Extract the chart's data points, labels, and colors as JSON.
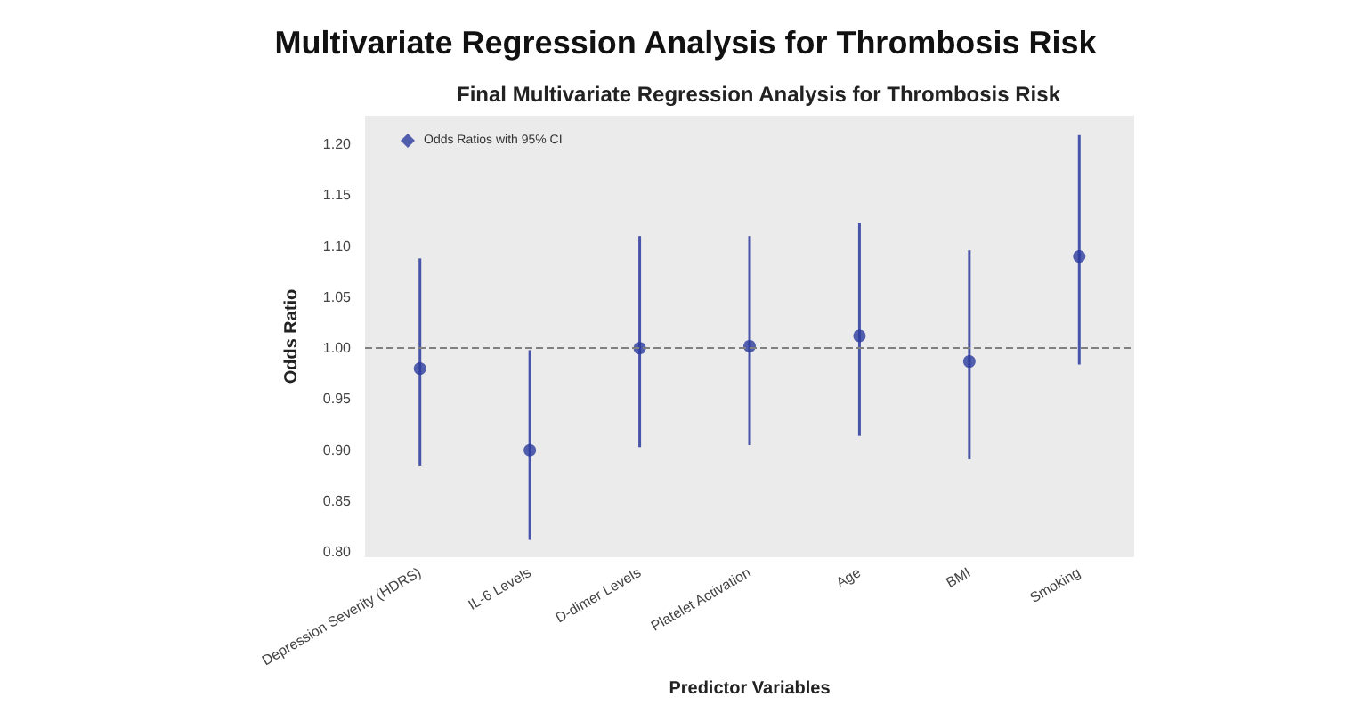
{
  "chart_data": {
    "type": "scatter",
    "title": "Multivariate Regression Analysis for Thrombosis Risk",
    "subtitle": "Final Multivariate Regression Analysis for Thrombosis Risk",
    "xlabel": "Predictor Variables",
    "ylabel": "Odds Ratio",
    "categories": [
      "Depression Severity (HDRS)",
      "IL-6 Levels",
      "D-dimer Levels",
      "Platelet Activation",
      "Age",
      "BMI",
      "Smoking"
    ],
    "series": [
      {
        "name": "Odds Ratios with 95% CI",
        "color": "#2b3a9e",
        "values": [
          0.98,
          0.9,
          1.0,
          1.002,
          1.012,
          0.987,
          1.09
        ],
        "errors": [
          [
            0.885,
            1.088
          ],
          [
            0.812,
            0.998
          ],
          [
            0.903,
            1.11
          ],
          [
            0.905,
            1.11
          ],
          [
            0.914,
            1.123
          ],
          [
            0.891,
            1.096
          ],
          [
            0.984,
            1.209
          ]
        ]
      }
    ],
    "ylim": [
      0.795,
      1.228
    ],
    "yticks": [
      {
        "value": 0.8,
        "label": "0.80"
      },
      {
        "value": 0.85,
        "label": "0.85"
      },
      {
        "value": 0.9,
        "label": "0.90"
      },
      {
        "value": 0.95,
        "label": "0.95"
      },
      {
        "value": 1.0,
        "label": "1.00"
      },
      {
        "value": 1.05,
        "label": "1.05"
      },
      {
        "value": 1.1,
        "label": "1.10"
      },
      {
        "value": 1.15,
        "label": "1.15"
      },
      {
        "value": 1.2,
        "label": "1.20"
      }
    ],
    "ref_lines": [
      {
        "axis": "y",
        "value": 1.0,
        "color": "#808080",
        "line_style": "dashed"
      }
    ],
    "marker": "circle",
    "legend": "top left",
    "grid": false
  }
}
